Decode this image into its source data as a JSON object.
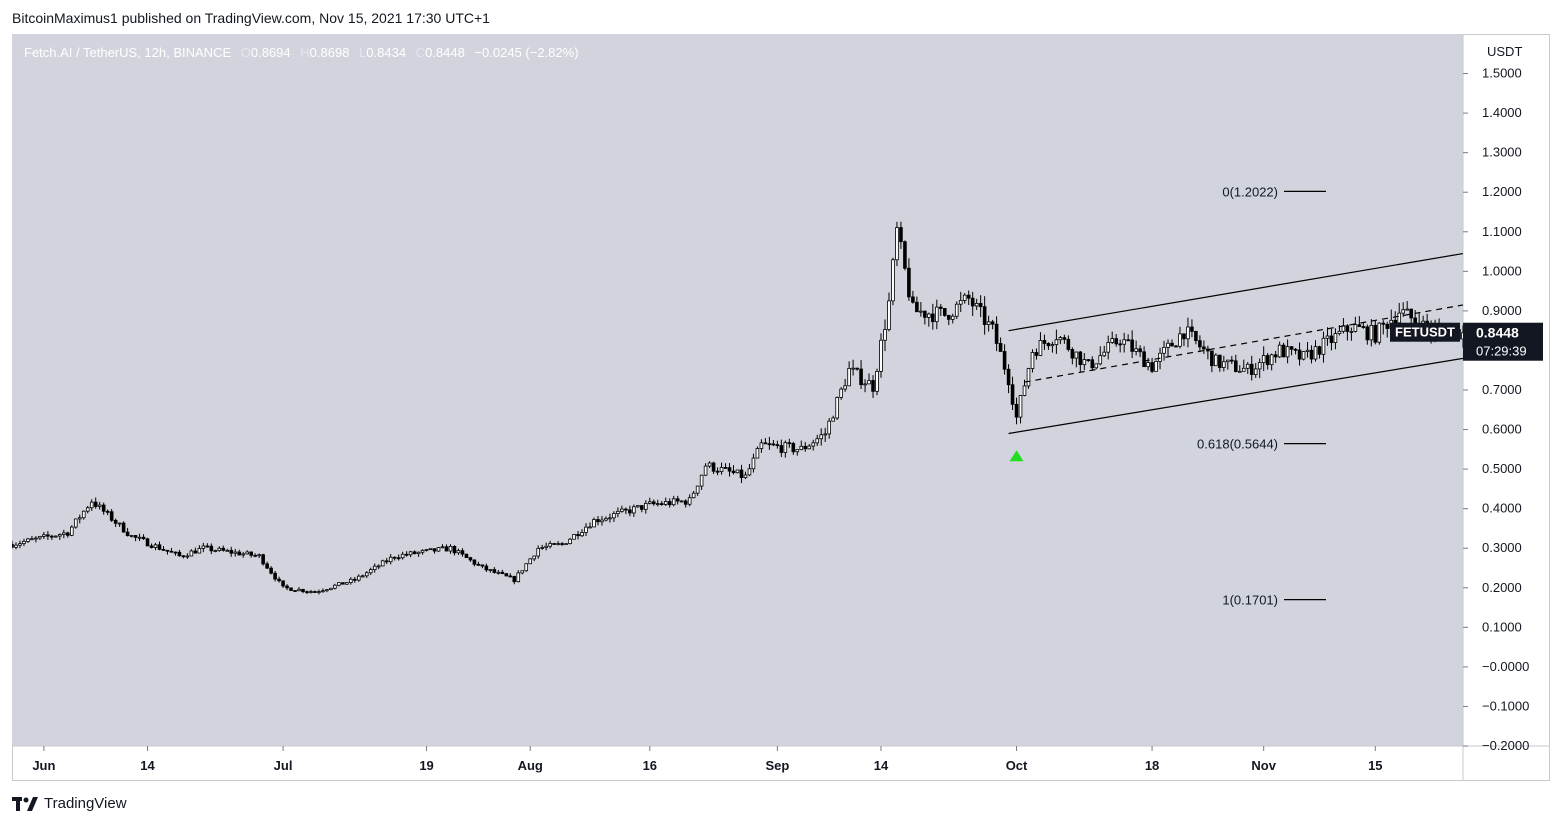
{
  "publisher_line": "BitcoinMaximus1 published on TradingView.com, Nov 15, 2021 17:30 UTC+1",
  "footer": {
    "brand": "TradingView",
    "logo_icon": "tradingview-logo-icon"
  },
  "colors": {
    "plot_bg": "#d1d4dc",
    "candle": "#000000",
    "label_bg": "#131722",
    "arrow": "#22dd22",
    "line": "#000000"
  },
  "legend": {
    "symbol": "Fetch.AI / TetherUS, 12h, BINANCE",
    "o_label": "O",
    "o": "0.8694",
    "h_label": "H",
    "h": "0.8698",
    "l_label": "L",
    "l": "0.8434",
    "c_label": "C",
    "c": "0.8448",
    "change": "−0.0245 (−2.82%)"
  },
  "chart_data": {
    "type": "candlestick",
    "title": "Fetch.AI / TetherUS, 12h, BINANCE",
    "y_unit": "USDT",
    "ylim": [
      -0.2,
      1.6
    ],
    "y_ticks": [
      "1.5000",
      "1.4000",
      "1.3000",
      "1.2000",
      "1.1000",
      "1.0000",
      "0.9000",
      "0.8000",
      "0.7000",
      "0.6000",
      "0.5000",
      "0.4000",
      "0.3000",
      "0.2000",
      "0.1000",
      "−0.0000",
      "−0.1000",
      "−0.2000"
    ],
    "y_tick_values": [
      1.5,
      1.4,
      1.3,
      1.2,
      1.1,
      1.0,
      0.9,
      0.8,
      0.7,
      0.6,
      0.5,
      0.4,
      0.3,
      0.2,
      0.1,
      0.0,
      -0.1,
      -0.2
    ],
    "x_ticks": [
      "Jun",
      "14",
      "Jul",
      "19",
      "Aug",
      "16",
      "Sep",
      "14",
      "Oct",
      "18",
      "Nov",
      "15"
    ],
    "x_tick_dates": [
      "2021-06-01",
      "2021-06-14",
      "2021-07-01",
      "2021-07-19",
      "2021-08-01",
      "2021-08-16",
      "2021-09-01",
      "2021-09-14",
      "2021-10-01",
      "2021-10-18",
      "2021-11-01",
      "2021-11-15"
    ],
    "x_start": "2021-05-28",
    "x_end": "2021-11-26",
    "price_path": [
      {
        "date": "2021-05-28",
        "close": 0.31
      },
      {
        "date": "2021-06-04",
        "close": 0.34
      },
      {
        "date": "2021-06-07",
        "close": 0.42
      },
      {
        "date": "2021-06-12",
        "close": 0.33
      },
      {
        "date": "2021-06-18",
        "close": 0.28
      },
      {
        "date": "2021-06-21",
        "close": 0.3
      },
      {
        "date": "2021-06-28",
        "close": 0.28
      },
      {
        "date": "2021-07-01",
        "close": 0.2
      },
      {
        "date": "2021-07-05",
        "close": 0.19
      },
      {
        "date": "2021-07-10",
        "close": 0.22
      },
      {
        "date": "2021-07-15",
        "close": 0.28
      },
      {
        "date": "2021-07-22",
        "close": 0.3
      },
      {
        "date": "2021-07-26",
        "close": 0.25
      },
      {
        "date": "2021-07-30",
        "close": 0.22
      },
      {
        "date": "2021-08-02",
        "close": 0.3
      },
      {
        "date": "2021-08-05",
        "close": 0.31
      },
      {
        "date": "2021-08-09",
        "close": 0.37
      },
      {
        "date": "2021-08-16",
        "close": 0.41
      },
      {
        "date": "2021-08-21",
        "close": 0.42
      },
      {
        "date": "2021-08-23",
        "close": 0.51
      },
      {
        "date": "2021-08-28",
        "close": 0.48
      },
      {
        "date": "2021-08-30",
        "close": 0.56
      },
      {
        "date": "2021-09-04",
        "close": 0.55
      },
      {
        "date": "2021-09-07",
        "close": 0.59
      },
      {
        "date": "2021-09-10",
        "close": 0.75
      },
      {
        "date": "2021-09-13",
        "close": 0.71
      },
      {
        "date": "2021-09-15",
        "close": 0.92
      },
      {
        "date": "2021-09-16",
        "close": 1.1
      },
      {
        "date": "2021-09-18",
        "close": 0.9
      },
      {
        "date": "2021-09-22",
        "close": 0.89
      },
      {
        "date": "2021-09-25",
        "close": 0.93
      },
      {
        "date": "2021-09-28",
        "close": 0.85
      },
      {
        "date": "2021-09-30",
        "close": 0.73
      },
      {
        "date": "2021-10-01",
        "close": 0.63
      },
      {
        "date": "2021-10-03",
        "close": 0.8
      },
      {
        "date": "2021-10-06",
        "close": 0.84
      },
      {
        "date": "2021-10-10",
        "close": 0.76
      },
      {
        "date": "2021-10-14",
        "close": 0.83
      },
      {
        "date": "2021-10-18",
        "close": 0.76
      },
      {
        "date": "2021-10-22",
        "close": 0.85
      },
      {
        "date": "2021-10-26",
        "close": 0.77
      },
      {
        "date": "2021-10-30",
        "close": 0.75
      },
      {
        "date": "2021-11-03",
        "close": 0.8
      },
      {
        "date": "2021-11-06",
        "close": 0.78
      },
      {
        "date": "2021-11-09",
        "close": 0.82
      },
      {
        "date": "2021-11-12",
        "close": 0.86
      },
      {
        "date": "2021-11-15",
        "close": 0.84
      },
      {
        "date": "2021-11-18",
        "close": 0.9
      },
      {
        "date": "2021-11-22",
        "close": 0.85
      },
      {
        "date": "2021-11-26",
        "close": 0.8448
      }
    ],
    "candle_interval": "12h",
    "channel": {
      "upper": [
        {
          "date": "2021-09-30",
          "value": 0.85
        },
        {
          "date": "2021-11-26",
          "value": 1.045
        }
      ],
      "lower": [
        {
          "date": "2021-09-30",
          "value": 0.59
        },
        {
          "date": "2021-11-26",
          "value": 0.78
        }
      ],
      "middle": [
        {
          "date": "2021-10-02",
          "value": 0.72
        },
        {
          "date": "2021-11-26",
          "value": 0.915
        }
      ]
    },
    "fib_levels": [
      {
        "label": "0(1.2022)",
        "value": 1.2022
      },
      {
        "label": "0.618(0.5644)",
        "value": 0.5644
      },
      {
        "label": "1(0.1701)",
        "value": 0.1701
      }
    ],
    "support_arrow": {
      "date": "2021-10-01",
      "value": 0.535
    },
    "last_price": {
      "symbol": "FETUSDT",
      "price": "0.8448",
      "countdown": "07:29:39"
    }
  }
}
